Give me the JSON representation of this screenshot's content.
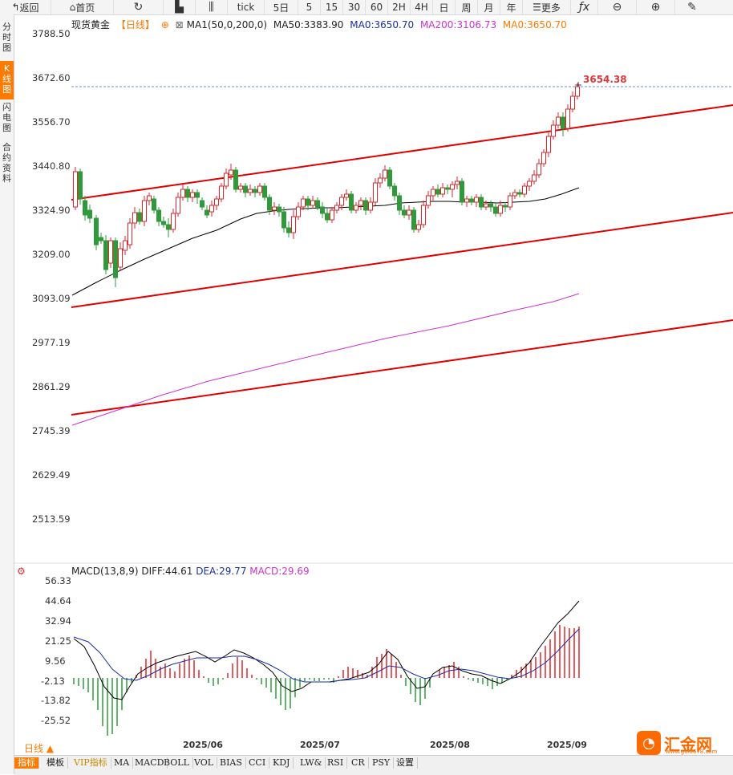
{
  "toolbar": {
    "back": "返回",
    "home": "首页",
    "tick": "tick",
    "items": [
      "5日",
      "5",
      "15",
      "30",
      "60",
      "2H",
      "4H",
      "日",
      "周",
      "月",
      "年"
    ],
    "more": "更多"
  },
  "sidebar": [
    "分时图",
    "K线图",
    "闪电图",
    "合约资料"
  ],
  "legend": {
    "name": "现货黄金",
    "period": "【日线】",
    "ma1": "MA1(50,0,200,0)",
    "ma50": "MA50:3383.90",
    "ma0": "MA0:3650.70",
    "ma200": "MA200:3106.73",
    "ma0b": "MA0:3650.70"
  },
  "price_axis": [
    "3788.50",
    "3672.60",
    "3556.70",
    "3440.80",
    "3324.90",
    "3209.00",
    "3093.09",
    "2977.19",
    "2861.29",
    "2745.39",
    "2629.49",
    "2513.59"
  ],
  "current_price": "3654.38",
  "macd_legend": {
    "label": "MACD(13,8,9)",
    "diff": "DIFF:44.61",
    "dea": "DEA:29.77",
    "macd": "MACD:29.69"
  },
  "macd_axis": [
    "56.33",
    "44.64",
    "32.94",
    "21.25",
    "9.56",
    "-2.13",
    "-13.82",
    "-25.52"
  ],
  "x_dates": [
    "2025/06",
    "2025/07",
    "2025/08",
    "2025/09"
  ],
  "period_button": "日线",
  "bottom_tabs": [
    "指标",
    "模板",
    "VIP指标",
    "MA",
    "MACD",
    "BOLL",
    "VOL",
    "BIAS",
    "CCI",
    "KDJ",
    "LW&",
    "RSI",
    "CR",
    "PSY",
    "设置"
  ],
  "logo": {
    "text": "汇金网",
    "sub": "www.gold678.com"
  },
  "colors": {
    "up": "#e0262b",
    "down": "#2f9a3a",
    "ma50": "#000000",
    "ma200": "#cc33cc",
    "channel": "#e00000",
    "accent": "#ff7a00"
  }
}
